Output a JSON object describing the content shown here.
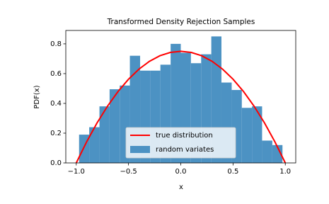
{
  "chart_data": {
    "type": "histogram",
    "title": "Transformed Density Rejection Samples",
    "xlabel": "x",
    "ylabel": "PDF(x)",
    "bins": [
      -0.973,
      -0.876,
      -0.778,
      -0.681,
      -0.584,
      -0.487,
      -0.389,
      -0.292,
      -0.195,
      -0.097,
      0,
      0.097,
      0.195,
      0.292,
      0.389,
      0.487,
      0.584,
      0.681,
      0.778,
      0.876,
      0.973
    ],
    "series": [
      {
        "name": "true distribution",
        "type": "line",
        "color": "#ff0000",
        "x": [
          -1,
          -0.9,
          -0.8,
          -0.7,
          -0.6,
          -0.5,
          -0.4,
          -0.3,
          -0.2,
          -0.1,
          0,
          0.1,
          0.2,
          0.3,
          0.4,
          0.5,
          0.6,
          0.7,
          0.8,
          0.9,
          1
        ],
        "values": [
          0,
          0.1425,
          0.27,
          0.3825,
          0.48,
          0.5625,
          0.63,
          0.6825,
          0.72,
          0.7425,
          0.75,
          0.7425,
          0.72,
          0.6825,
          0.63,
          0.5625,
          0.48,
          0.3825,
          0.27,
          0.1425,
          0
        ]
      },
      {
        "name": "random variates",
        "type": "histogram",
        "color": "#4c92c3",
        "values": [
          0.19,
          0.24,
          0.38,
          0.495,
          0.52,
          0.72,
          0.62,
          0.62,
          0.66,
          0.8,
          0.74,
          0.67,
          0.73,
          0.85,
          0.54,
          0.49,
          0.37,
          0.38,
          0.15,
          0.12
        ]
      }
    ],
    "xlim": [
      -1.1,
      1.1
    ],
    "ylim": [
      0,
      0.89
    ],
    "xticks": [
      {
        "value": -1,
        "label": "−1.0"
      },
      {
        "value": -0.5,
        "label": "−0.5"
      },
      {
        "value": 0,
        "label": "0.0"
      },
      {
        "value": 0.5,
        "label": "0.5"
      },
      {
        "value": 1,
        "label": "1.0"
      }
    ],
    "yticks": [
      {
        "value": 0,
        "label": "0.0"
      },
      {
        "value": 0.2,
        "label": "0.2"
      },
      {
        "value": 0.4,
        "label": "0.4"
      },
      {
        "value": 0.6,
        "label": "0.6"
      },
      {
        "value": 0.8,
        "label": "0.8"
      }
    ],
    "legend": "lower center"
  }
}
